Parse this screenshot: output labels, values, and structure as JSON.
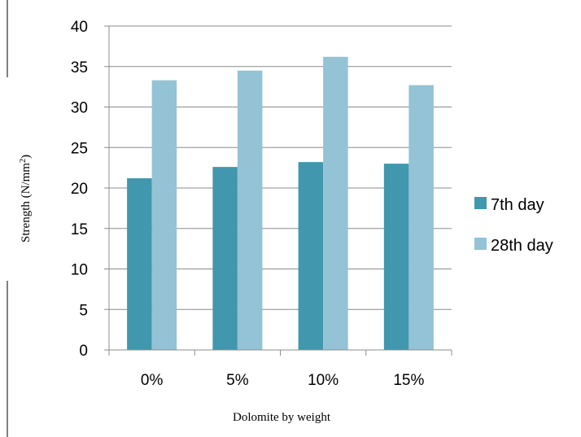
{
  "chart_data": {
    "type": "bar",
    "categories": [
      "0%",
      "5%",
      "10%",
      "15%"
    ],
    "series": [
      {
        "name": "7th day",
        "values": [
          21.2,
          22.6,
          23.2,
          23.0
        ],
        "color": "#4197ad"
      },
      {
        "name": "28th day",
        "values": [
          33.3,
          34.5,
          36.2,
          32.7
        ],
        "color": "#93c3d5"
      }
    ],
    "xlabel": "Dolomite by weight",
    "ylabel": "Strength (N/mm",
    "ylabel_superscript": "2",
    "ylabel_suffix": ")",
    "ylim": [
      0,
      40
    ],
    "yticks": [
      "0",
      "5",
      "10",
      "15",
      "20",
      "25",
      "30",
      "35",
      "40"
    ],
    "grid": true,
    "legend_position": "right"
  }
}
